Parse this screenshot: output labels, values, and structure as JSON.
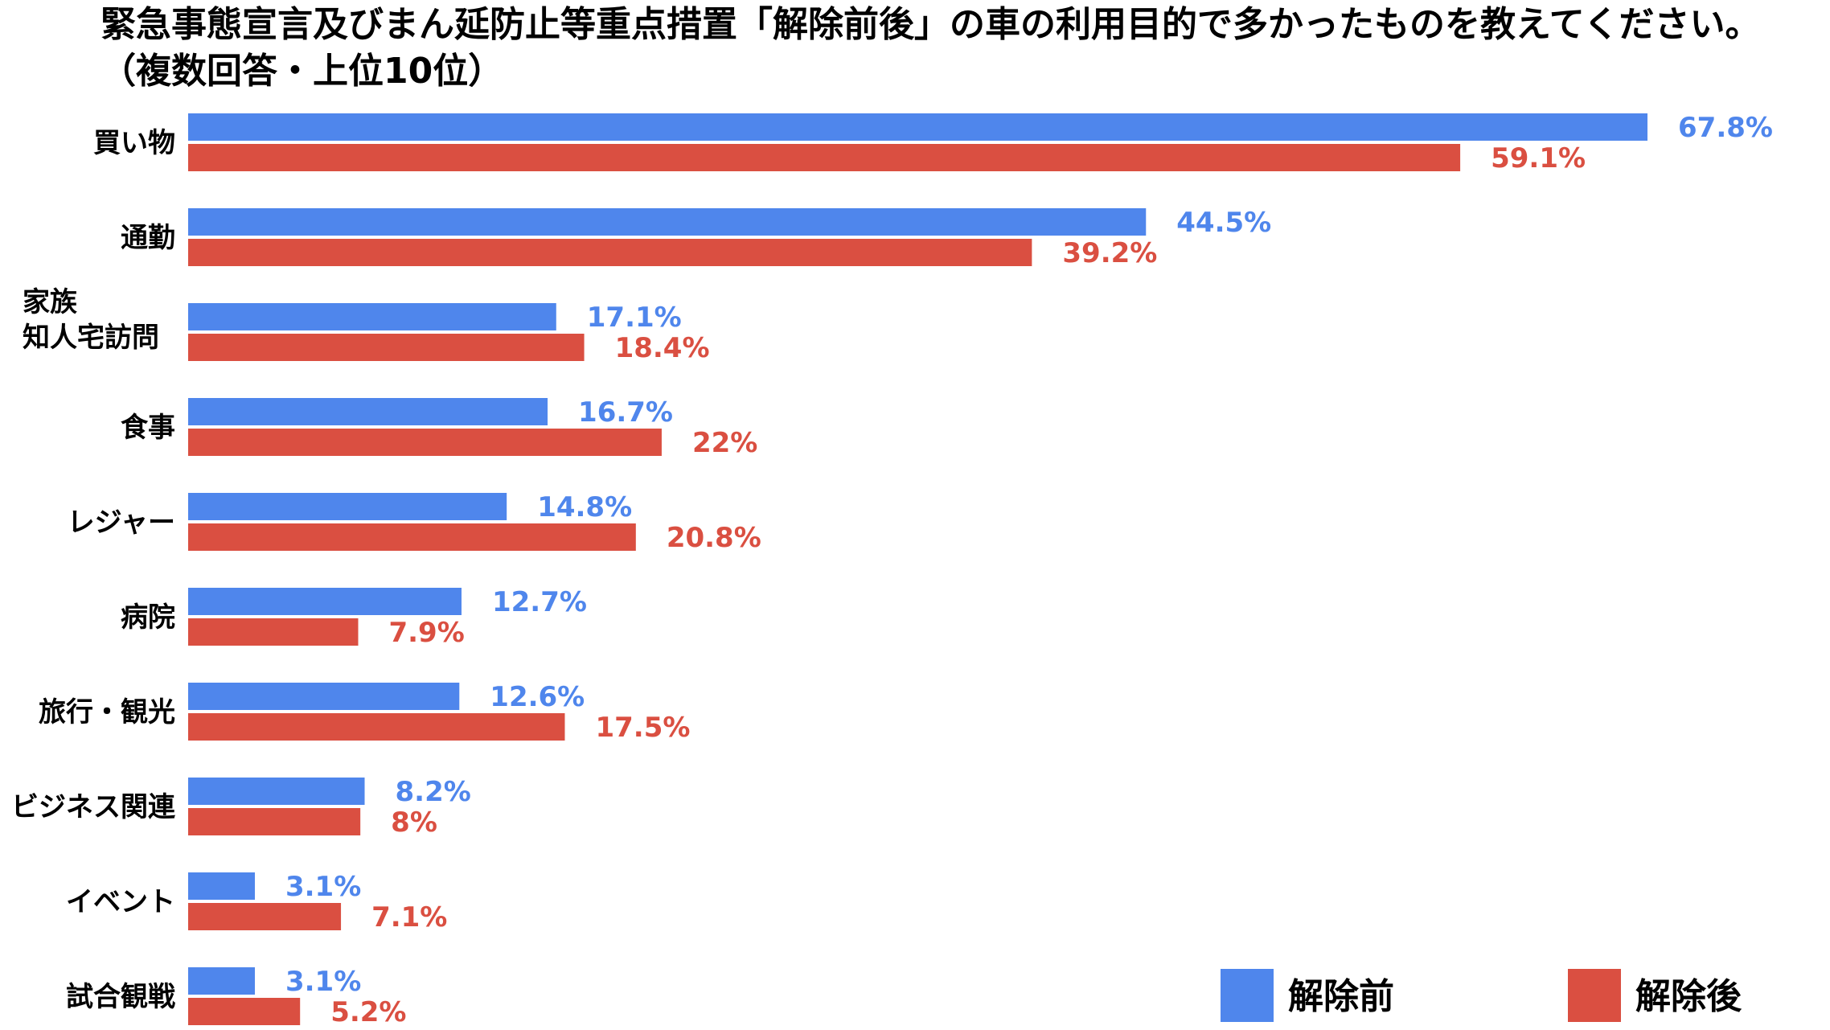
{
  "chart_data": {
    "type": "bar",
    "orientation": "horizontal",
    "title": "緊急事態宣言及びまん延防止等重点措置「解除前後」の車の利用目的で多かったものを教えてください。（複数回答・上位10位）",
    "categories": [
      "買い物",
      "通勤",
      "家族\n知人宅訪問",
      "食事",
      "レジャー",
      "病院",
      "旅行・観光",
      "ビジネス関連",
      "イベント",
      "試合観戦"
    ],
    "series": [
      {
        "name": "解除前",
        "color": "#4F86EC",
        "values": [
          67.8,
          44.5,
          17.1,
          16.7,
          14.8,
          12.7,
          12.6,
          8.2,
          3.1,
          3.1
        ],
        "labels": [
          "67.8%",
          "44.5%",
          "17.1%",
          "16.7%",
          "14.8%",
          "12.7%",
          "12.6%",
          "8.2%",
          "3.1%",
          "3.1%"
        ]
      },
      {
        "name": "解除後",
        "color": "#DA4F41",
        "values": [
          59.1,
          39.2,
          18.4,
          22,
          20.8,
          7.9,
          17.5,
          8,
          7.1,
          5.2
        ],
        "labels": [
          "59.1%",
          "39.2%",
          "18.4%",
          "22%",
          "20.8%",
          "7.9%",
          "17.5%",
          "8%",
          "7.1%",
          "5.2%"
        ]
      }
    ],
    "xlim": [
      0,
      70
    ],
    "grid": false,
    "legend_position": "bottom-right"
  }
}
